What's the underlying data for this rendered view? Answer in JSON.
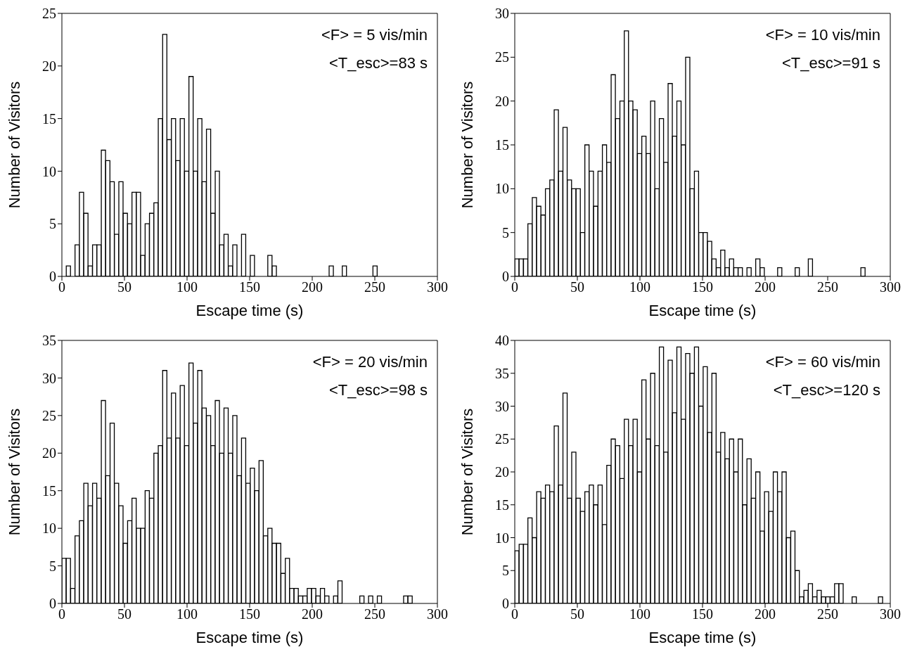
{
  "chart_data": [
    {
      "type": "histogram",
      "xlabel": "Escape time (s)",
      "ylabel": "Number of Visitors",
      "annotations": [
        "<F> = 5 vis/min",
        "<T_esc>=83 s"
      ],
      "color": "#000000",
      "bins": [
        0,
        3.5,
        7,
        10.5,
        14,
        17.5,
        21,
        24.5,
        28,
        31.5,
        35,
        38.5,
        42,
        45.5,
        49,
        52.5,
        56,
        59.5,
        63,
        66.5,
        70,
        73.5,
        77,
        80.5,
        84,
        87.5,
        91,
        94.5,
        98,
        101.5,
        105,
        108.5,
        112,
        115.5,
        119,
        122.5,
        126,
        129.5,
        133,
        136.5,
        140,
        143.5,
        147,
        150.5,
        154,
        157.5,
        161,
        164.5,
        168,
        171.5,
        175,
        178.5,
        182,
        185.5,
        189,
        192.5,
        196,
        199.5,
        203,
        206.5,
        210,
        213.5,
        217,
        220.5,
        224,
        227.5,
        231,
        234.5,
        238,
        241.5,
        245,
        248.5,
        252,
        255.5,
        259,
        262.5,
        266,
        269.5,
        273,
        276.5,
        280,
        283.5,
        287,
        290.5,
        294,
        297.5
      ],
      "values": [
        0,
        1,
        0,
        3,
        8,
        6,
        1,
        3,
        3,
        12,
        11,
        9,
        4,
        9,
        6,
        5,
        8,
        8,
        2,
        5,
        6,
        7,
        15,
        23,
        13,
        15,
        11,
        15,
        10,
        19,
        10,
        15,
        9,
        14,
        6,
        10,
        3,
        4,
        1,
        3,
        0,
        4,
        0,
        2,
        0,
        0,
        0,
        2,
        1,
        0,
        0,
        0,
        0,
        0,
        0,
        0,
        0,
        0,
        0,
        0,
        0,
        1,
        0,
        0,
        1,
        0,
        0,
        0,
        0,
        0,
        0,
        1,
        0,
        0,
        0,
        0,
        0,
        0,
        0,
        0,
        0,
        0,
        0,
        0,
        0
      ],
      "xlim": [
        0,
        300
      ],
      "xticks": [
        0,
        50,
        100,
        150,
        200,
        250,
        300
      ],
      "ylim": [
        0,
        25
      ],
      "yticks": [
        0,
        5,
        10,
        15,
        20,
        25
      ]
    },
    {
      "type": "histogram",
      "xlabel": "Escape time (s)",
      "ylabel": "Number of Visitors",
      "annotations": [
        "<F> = 10 vis/min",
        "<T_esc>=91 s"
      ],
      "color": "#000000",
      "bins": [
        0,
        3.5,
        7,
        10.5,
        14,
        17.5,
        21,
        24.5,
        28,
        31.5,
        35,
        38.5,
        42,
        45.5,
        49,
        52.5,
        56,
        59.5,
        63,
        66.5,
        70,
        73.5,
        77,
        80.5,
        84,
        87.5,
        91,
        94.5,
        98,
        101.5,
        105,
        108.5,
        112,
        115.5,
        119,
        122.5,
        126,
        129.5,
        133,
        136.5,
        140,
        143.5,
        147,
        150.5,
        154,
        157.5,
        161,
        164.5,
        168,
        171.5,
        175,
        178.5,
        182,
        185.5,
        189,
        192.5,
        196,
        199.5,
        203,
        206.5,
        210,
        213.5,
        217,
        220.5,
        224,
        227.5,
        231,
        234.5,
        238,
        241.5,
        245,
        248.5,
        252,
        255.5,
        259,
        262.5,
        266,
        269.5,
        273,
        276.5,
        280,
        283.5,
        287,
        290.5,
        294,
        297.5
      ],
      "values": [
        2,
        2,
        2,
        6,
        9,
        8,
        7,
        10,
        11,
        19,
        12,
        17,
        11,
        10,
        10,
        5,
        15,
        12,
        8,
        12,
        15,
        13,
        23,
        18,
        20,
        28,
        20,
        19,
        14,
        16,
        14,
        20,
        10,
        18,
        13,
        22,
        16,
        20,
        15,
        25,
        10,
        12,
        5,
        5,
        4,
        2,
        1,
        3,
        1,
        2,
        1,
        1,
        0,
        1,
        0,
        2,
        1,
        0,
        0,
        0,
        1,
        0,
        0,
        0,
        1,
        0,
        0,
        2,
        0,
        0,
        0,
        0,
        0,
        0,
        0,
        0,
        0,
        0,
        0,
        1,
        0,
        0,
        0,
        0,
        0
      ],
      "xlim": [
        0,
        300
      ],
      "xticks": [
        0,
        50,
        100,
        150,
        200,
        250,
        300
      ],
      "ylim": [
        0,
        30
      ],
      "yticks": [
        0,
        5,
        10,
        15,
        20,
        25,
        30
      ]
    },
    {
      "type": "histogram",
      "xlabel": "Escape time (s)",
      "ylabel": "Number of Visitors",
      "annotations": [
        "<F> = 20 vis/min",
        "<T_esc>=98 s"
      ],
      "color": "#000000",
      "bins": [
        0,
        3.5,
        7,
        10.5,
        14,
        17.5,
        21,
        24.5,
        28,
        31.5,
        35,
        38.5,
        42,
        45.5,
        49,
        52.5,
        56,
        59.5,
        63,
        66.5,
        70,
        73.5,
        77,
        80.5,
        84,
        87.5,
        91,
        94.5,
        98,
        101.5,
        105,
        108.5,
        112,
        115.5,
        119,
        122.5,
        126,
        129.5,
        133,
        136.5,
        140,
        143.5,
        147,
        150.5,
        154,
        157.5,
        161,
        164.5,
        168,
        171.5,
        175,
        178.5,
        182,
        185.5,
        189,
        192.5,
        196,
        199.5,
        203,
        206.5,
        210,
        213.5,
        217,
        220.5,
        224,
        227.5,
        231,
        234.5,
        238,
        241.5,
        245,
        248.5,
        252,
        255.5,
        259,
        262.5,
        266,
        269.5,
        273,
        276.5,
        280,
        283.5,
        287,
        290.5,
        294,
        297.5
      ],
      "values": [
        6,
        6,
        2,
        9,
        11,
        16,
        13,
        16,
        14,
        27,
        17,
        24,
        16,
        13,
        8,
        11,
        14,
        10,
        10,
        15,
        14,
        20,
        21,
        31,
        22,
        28,
        22,
        29,
        21,
        32,
        24,
        31,
        26,
        25,
        21,
        27,
        20,
        26,
        20,
        25,
        17,
        22,
        16,
        18,
        15,
        19,
        9,
        10,
        8,
        8,
        4,
        6,
        2,
        2,
        1,
        1,
        2,
        2,
        1,
        2,
        1,
        0,
        1,
        3,
        0,
        0,
        0,
        0,
        1,
        0,
        1,
        0,
        1,
        0,
        0,
        0,
        0,
        0,
        1,
        1,
        0,
        0,
        0,
        0,
        0
      ],
      "xlim": [
        0,
        300
      ],
      "xticks": [
        0,
        50,
        100,
        150,
        200,
        250,
        300
      ],
      "ylim": [
        0,
        35
      ],
      "yticks": [
        0,
        5,
        10,
        15,
        20,
        25,
        30,
        35
      ]
    },
    {
      "type": "histogram",
      "xlabel": "Escape time (s)",
      "ylabel": "Number of Visitors",
      "annotations": [
        "<F> = 60 vis/min",
        "<T_esc>=120 s"
      ],
      "color": "#000000",
      "bins": [
        0,
        3.5,
        7,
        10.5,
        14,
        17.5,
        21,
        24.5,
        28,
        31.5,
        35,
        38.5,
        42,
        45.5,
        49,
        52.5,
        56,
        59.5,
        63,
        66.5,
        70,
        73.5,
        77,
        80.5,
        84,
        87.5,
        91,
        94.5,
        98,
        101.5,
        105,
        108.5,
        112,
        115.5,
        119,
        122.5,
        126,
        129.5,
        133,
        136.5,
        140,
        143.5,
        147,
        150.5,
        154,
        157.5,
        161,
        164.5,
        168,
        171.5,
        175,
        178.5,
        182,
        185.5,
        189,
        192.5,
        196,
        199.5,
        203,
        206.5,
        210,
        213.5,
        217,
        220.5,
        224,
        227.5,
        231,
        234.5,
        238,
        241.5,
        245,
        248.5,
        252,
        255.5,
        259,
        262.5,
        266,
        269.5,
        273,
        276.5,
        280,
        283.5,
        287,
        290.5,
        294,
        297.5
      ],
      "values": [
        8,
        9,
        9,
        13,
        10,
        17,
        16,
        18,
        17,
        27,
        18,
        32,
        16,
        23,
        16,
        14,
        17,
        18,
        15,
        18,
        12,
        21,
        25,
        24,
        19,
        28,
        24,
        28,
        20,
        34,
        25,
        35,
        24,
        39,
        23,
        37,
        29,
        39,
        28,
        38,
        35,
        39,
        30,
        36,
        26,
        35,
        23,
        26,
        22,
        25,
        20,
        25,
        15,
        22,
        16,
        20,
        11,
        17,
        14,
        20,
        17,
        20,
        10,
        11,
        5,
        1,
        2,
        3,
        1,
        2,
        1,
        1,
        1,
        3,
        3,
        0,
        0,
        1,
        0,
        0,
        0,
        0,
        0,
        1,
        0
      ],
      "xlim": [
        0,
        300
      ],
      "xticks": [
        0,
        50,
        100,
        150,
        200,
        250,
        300
      ],
      "ylim": [
        0,
        40
      ],
      "yticks": [
        0,
        5,
        10,
        15,
        20,
        25,
        30,
        35,
        40
      ]
    }
  ]
}
